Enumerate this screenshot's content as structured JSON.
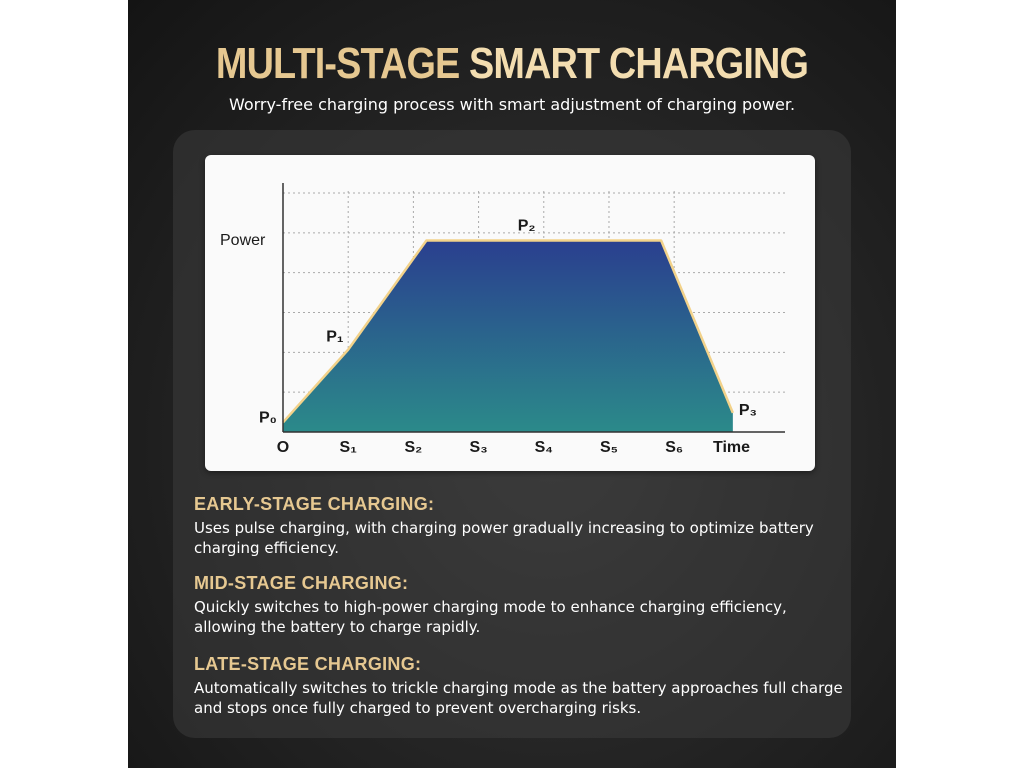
{
  "header": {
    "title_part1": "MULTI-STAGE ",
    "title_part2": "SMART CHARGING",
    "subtitle": "Worry-free charging process with smart adjustment of charging power."
  },
  "chart_data": {
    "type": "area",
    "ylabel": "Power",
    "xlabel": "Time",
    "x_ticks": [
      "O",
      "S₁",
      "S₂",
      "S₃",
      "S₄",
      "S₅",
      "S₆"
    ],
    "points": [
      {
        "label": "P₀",
        "x": 0,
        "y": 0.05
      },
      {
        "label": "P₁",
        "x": 1,
        "y": 0.43
      },
      {
        "label": "",
        "x": 2.2,
        "y": 1.0
      },
      {
        "label": "P₂",
        "x": 3.6,
        "y": 1.0
      },
      {
        "label": "",
        "x": 5.8,
        "y": 1.0
      },
      {
        "label": "P₃",
        "x": 6.9,
        "y": 0.1
      }
    ],
    "x_range": [
      0,
      7.7
    ],
    "y_range": [
      0,
      1.3
    ],
    "grid": true,
    "line_color": "#f2d28a",
    "fill_top": "#2a3f8f",
    "fill_bottom": "#2b8a8a"
  },
  "sections": [
    {
      "heading": "EARLY-STAGE CHARGING:",
      "body": "Uses pulse charging, with charging power gradually increasing to optimize battery charging efficiency."
    },
    {
      "heading": "MID-STAGE CHARGING:",
      "body": "Quickly switches to high-power charging mode to enhance charging efficiency, allowing the battery to charge rapidly."
    },
    {
      "heading": "LATE-STAGE CHARGING:",
      "body": "Automatically switches to trickle charging mode as the battery approaches full charge and stops once fully charged to prevent overcharging risks."
    }
  ]
}
